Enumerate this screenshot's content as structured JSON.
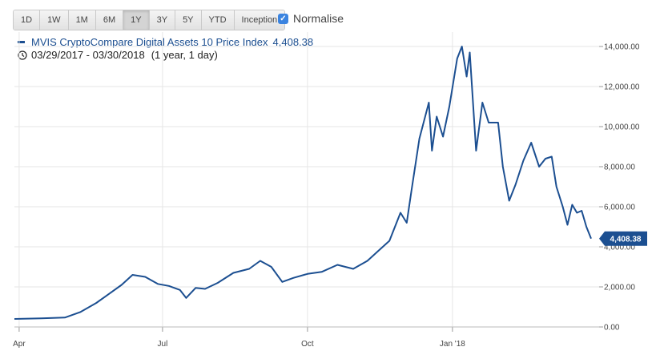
{
  "range_buttons": [
    {
      "label": "1D",
      "active": false
    },
    {
      "label": "1W",
      "active": false
    },
    {
      "label": "1M",
      "active": false
    },
    {
      "label": "6M",
      "active": false
    },
    {
      "label": "1Y",
      "active": true
    },
    {
      "label": "3Y",
      "active": false
    },
    {
      "label": "5Y",
      "active": false
    },
    {
      "label": "YTD",
      "active": false
    },
    {
      "label": "Inception",
      "active": false
    }
  ],
  "normalise": {
    "label": "Normalise",
    "checked": true
  },
  "legend": {
    "series_name": "MVIS CryptoCompare Digital Assets 10 Price Index",
    "last_value": "4,408.38",
    "period": "03/29/2017 - 03/30/2018",
    "duration": "(1 year, 1 day)"
  },
  "colors": {
    "series": "#1c4f91",
    "grid": "#e6e6e6",
    "accent": "#3b84e0"
  },
  "chart_data": {
    "type": "line",
    "x_ticks": [
      "Apr",
      "Jul",
      "Oct",
      "Jan '18"
    ],
    "y_ticks": [
      "0.00",
      "2,000.00",
      "4,000.00",
      "6,000.00",
      "8,000.00",
      "10,000.00",
      "12,000.00",
      "14,000.00"
    ],
    "ylim": [
      0,
      14000
    ],
    "xlim": [
      "2017-03-29",
      "2018-03-30"
    ],
    "last_value_label": "4,408.38",
    "series": [
      {
        "name": "MVIS CryptoCompare Digital Assets 10 Price Index",
        "points": [
          [
            "2017-03-29",
            400
          ],
          [
            "2017-04-15",
            430
          ],
          [
            "2017-04-30",
            470
          ],
          [
            "2017-05-10",
            750
          ],
          [
            "2017-05-20",
            1200
          ],
          [
            "2017-05-28",
            1650
          ],
          [
            "2017-06-05",
            2100
          ],
          [
            "2017-06-12",
            2600
          ],
          [
            "2017-06-20",
            2500
          ],
          [
            "2017-06-28",
            2150
          ],
          [
            "2017-07-05",
            2050
          ],
          [
            "2017-07-12",
            1850
          ],
          [
            "2017-07-16",
            1450
          ],
          [
            "2017-07-22",
            1950
          ],
          [
            "2017-07-28",
            1900
          ],
          [
            "2017-08-05",
            2200
          ],
          [
            "2017-08-15",
            2700
          ],
          [
            "2017-08-25",
            2900
          ],
          [
            "2017-09-01",
            3300
          ],
          [
            "2017-09-08",
            3000
          ],
          [
            "2017-09-15",
            2250
          ],
          [
            "2017-09-22",
            2450
          ],
          [
            "2017-10-01",
            2650
          ],
          [
            "2017-10-10",
            2750
          ],
          [
            "2017-10-20",
            3100
          ],
          [
            "2017-10-30",
            2900
          ],
          [
            "2017-11-08",
            3300
          ],
          [
            "2017-11-15",
            3800
          ],
          [
            "2017-11-22",
            4300
          ],
          [
            "2017-11-29",
            5700
          ],
          [
            "2017-12-03",
            5200
          ],
          [
            "2017-12-06",
            6800
          ],
          [
            "2017-12-11",
            9400
          ],
          [
            "2017-12-17",
            11200
          ],
          [
            "2017-12-19",
            8800
          ],
          [
            "2017-12-22",
            10500
          ],
          [
            "2017-12-26",
            9500
          ],
          [
            "2017-12-30",
            11000
          ],
          [
            "2018-01-04",
            13400
          ],
          [
            "2018-01-07",
            14000
          ],
          [
            "2018-01-10",
            12500
          ],
          [
            "2018-01-12",
            13700
          ],
          [
            "2018-01-16",
            8800
          ],
          [
            "2018-01-20",
            11200
          ],
          [
            "2018-01-24",
            10200
          ],
          [
            "2018-01-30",
            10200
          ],
          [
            "2018-02-02",
            8000
          ],
          [
            "2018-02-06",
            6300
          ],
          [
            "2018-02-10",
            7100
          ],
          [
            "2018-02-15",
            8300
          ],
          [
            "2018-02-20",
            9200
          ],
          [
            "2018-02-25",
            8000
          ],
          [
            "2018-03-01",
            8400
          ],
          [
            "2018-03-05",
            8500
          ],
          [
            "2018-03-08",
            7000
          ],
          [
            "2018-03-12",
            6000
          ],
          [
            "2018-03-15",
            5100
          ],
          [
            "2018-03-18",
            6100
          ],
          [
            "2018-03-21",
            5700
          ],
          [
            "2018-03-24",
            5800
          ],
          [
            "2018-03-27",
            5000
          ],
          [
            "2018-03-30",
            4408
          ]
        ]
      }
    ]
  }
}
